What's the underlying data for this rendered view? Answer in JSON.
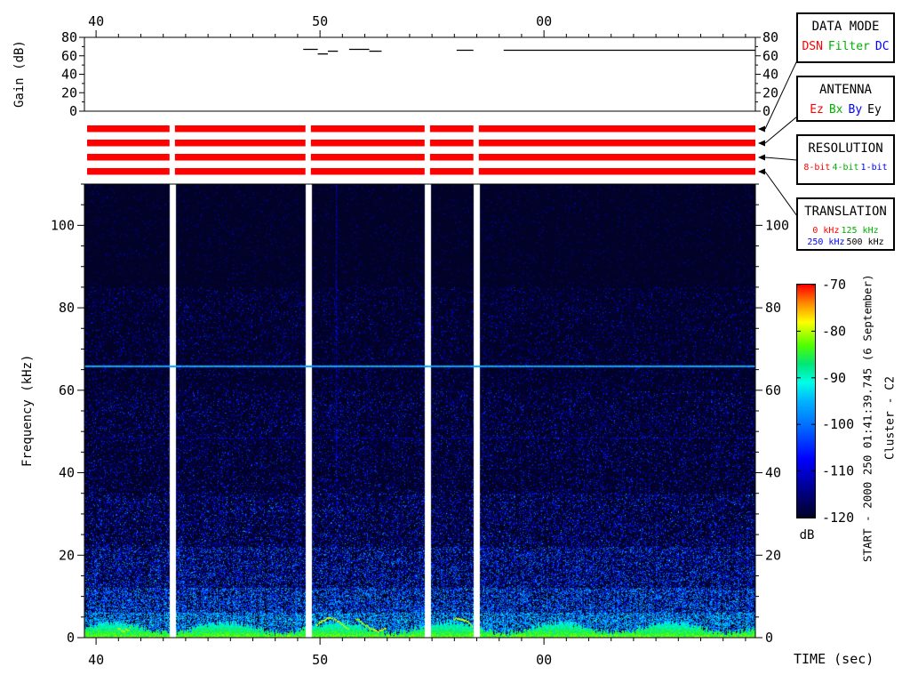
{
  "axes": {
    "gain": {
      "label": "Gain (dB)",
      "min": 0,
      "max": 80,
      "minor_step": 10,
      "ticks": [
        0,
        20,
        40,
        60,
        80
      ]
    },
    "freq": {
      "label": "Frequency (kHz)",
      "min": 0,
      "max": 110,
      "minor_step": 5,
      "ticks": [
        0,
        20,
        40,
        60,
        80,
        100
      ]
    },
    "time": {
      "label": "TIME (sec)",
      "tmin": 39.48,
      "tmax": 69.44,
      "minor_step": 1,
      "ticks": [
        {
          "t": 40,
          "label": "40"
        },
        {
          "t": 50,
          "label": "50"
        },
        {
          "t": 60,
          "label": "00"
        }
      ]
    }
  },
  "colorbar": {
    "label": "dB",
    "vmin": -120,
    "vmax": -70,
    "ticks": [
      -70,
      -80,
      -90,
      -100,
      -110,
      -120
    ],
    "colormap": [
      [
        0,
        "#020228"
      ],
      [
        0.12,
        "#00008c"
      ],
      [
        0.25,
        "#0000ff"
      ],
      [
        0.38,
        "#0064ff"
      ],
      [
        0.5,
        "#00b4ff"
      ],
      [
        0.58,
        "#00ffe6"
      ],
      [
        0.66,
        "#00e678"
      ],
      [
        0.74,
        "#50ff00"
      ],
      [
        0.84,
        "#ffff00"
      ],
      [
        0.92,
        "#ff8c00"
      ],
      [
        1,
        "#ff0000"
      ]
    ]
  },
  "legend": {
    "data_mode": {
      "title": "DATA MODE",
      "items": [
        {
          "label": "DSN",
          "color": "#ff0000"
        },
        {
          "label": "Filter",
          "color": "#00b000"
        },
        {
          "label": "DC",
          "color": "#0000ff"
        }
      ]
    },
    "antenna": {
      "title": "ANTENNA",
      "items": [
        {
          "label": "Ez",
          "color": "#ff0000"
        },
        {
          "label": "Bx",
          "color": "#00b000"
        },
        {
          "label": "By",
          "color": "#0000ff"
        },
        {
          "label": "Ey",
          "color": "#000000"
        }
      ]
    },
    "resolution": {
      "title": "RESOLUTION",
      "items": [
        {
          "label": "8-bit",
          "color": "#ff0000"
        },
        {
          "label": "4-bit",
          "color": "#00b000"
        },
        {
          "label": "1-bit",
          "color": "#0000ff"
        }
      ]
    },
    "translation": {
      "title": "TRANSLATION",
      "items": [
        {
          "label": "0 kHz",
          "color": "#ff0000"
        },
        {
          "label": "125 kHz",
          "color": "#00b000"
        },
        {
          "label": "250 kHz",
          "color": "#0000ff"
        },
        {
          "label": "500 kHz",
          "color": "#000000"
        }
      ]
    }
  },
  "annotations": {
    "start_text": "START - 2000 250 01:41:39.745 (6 September)",
    "spacecraft": "Cluster - C2"
  },
  "status_bars": {
    "color": "#ff0000",
    "t_start": 39.6,
    "t_end": 69.44,
    "rows": [
      "data-mode",
      "antenna",
      "resolution",
      "translation"
    ],
    "gaps": [
      [
        43.28,
        43.52
      ],
      [
        49.35,
        49.59
      ],
      [
        54.67,
        54.91
      ],
      [
        56.85,
        57.09
      ]
    ]
  },
  "chart_data": [
    {
      "type": "line",
      "name": "gain",
      "ylabel": "Gain (dB)",
      "ylim": [
        0,
        80
      ],
      "x_units": "sec",
      "segments": [
        {
          "t1": 49.25,
          "t2": 49.9,
          "db": 67
        },
        {
          "t1": 49.9,
          "t2": 50.35,
          "db": 62
        },
        {
          "t1": 50.35,
          "t2": 50.8,
          "db": 65
        },
        {
          "t1": 51.3,
          "t2": 52.2,
          "db": 67
        },
        {
          "t1": 52.2,
          "t2": 52.75,
          "db": 65
        },
        {
          "t1": 56.1,
          "t2": 56.85,
          "db": 66
        },
        {
          "t1": 58.2,
          "t2": 69.44,
          "db": 66
        }
      ]
    },
    {
      "type": "heatmap",
      "name": "wbd-spectrogram",
      "xlabel": "TIME (sec)",
      "ylabel": "Frequency (kHz)",
      "xlim": [
        39.48,
        69.44
      ],
      "ylim": [
        0,
        110
      ],
      "value_db_range": [
        -120,
        -70
      ],
      "features": {
        "background_db": -120,
        "narrowband_emission_khz": 66,
        "weak_line_khz": 48.5,
        "broadband_noise_top_khz": 2.5,
        "noise_density_increases_toward_low_freq": true,
        "vertical_streak_sec": 50.72,
        "data_gap_columns_sec": [
          [
            43.28,
            43.52
          ],
          [
            49.35,
            49.59
          ],
          [
            54.67,
            54.91
          ],
          [
            56.85,
            57.09
          ]
        ]
      }
    }
  ]
}
